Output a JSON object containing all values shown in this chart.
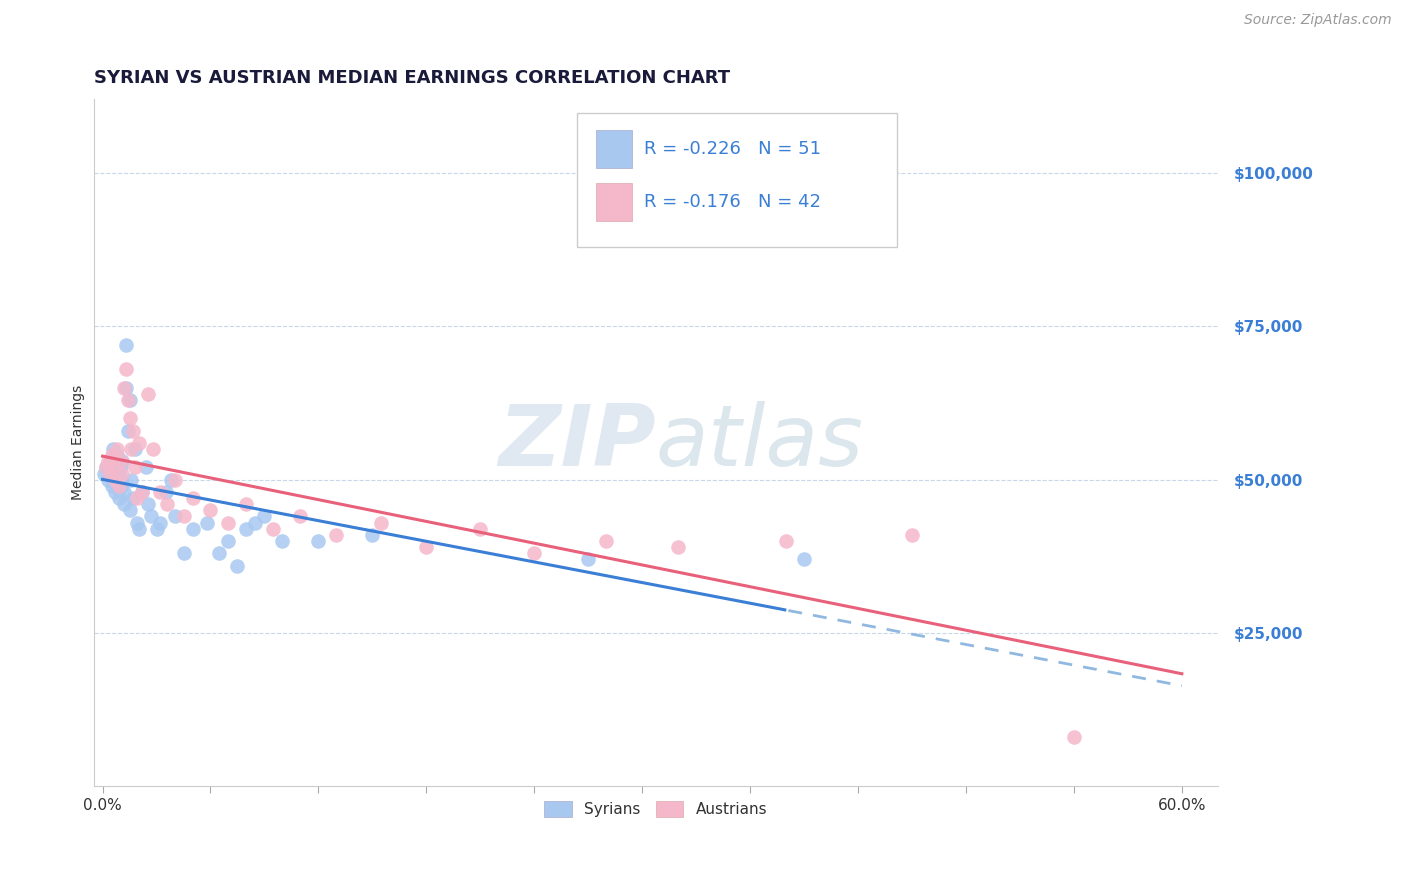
{
  "title": "SYRIAN VS AUSTRIAN MEDIAN EARNINGS CORRELATION CHART",
  "source": "Source: ZipAtlas.com",
  "ylabel": "Median Earnings",
  "xlim": [
    -0.005,
    0.62
  ],
  "ylim": [
    0,
    112000
  ],
  "yticks": [
    25000,
    50000,
    75000,
    100000
  ],
  "ytick_labels": [
    "$25,000",
    "$50,000",
    "$75,000",
    "$100,000"
  ],
  "xtick_labels_show": [
    "0.0%",
    "60.0%"
  ],
  "xtick_positions_show": [
    0.0,
    0.6
  ],
  "xtick_minor": [
    0.0,
    0.06,
    0.12,
    0.18,
    0.24,
    0.3,
    0.36,
    0.42,
    0.48,
    0.54,
    0.6
  ],
  "syrians_color": "#a8c8f0",
  "austrians_color": "#f5b8cb",
  "trendline_syrians_solid_color": "#3a7fd5",
  "trendline_syrians_dash_color": "#90b8e0",
  "trendline_austrians_color": "#e8607a",
  "background_color": "#ffffff",
  "watermark_zip": "ZIP",
  "watermark_atlas": "atlas",
  "legend_blue_color": "#3a7fd5",
  "legend_r1": "R = -0.226",
  "legend_n1": "N = 51",
  "legend_r2": "R = -0.176",
  "legend_n2": "N = 42",
  "syrians_x": [
    0.001,
    0.002,
    0.003,
    0.004,
    0.005,
    0.006,
    0.006,
    0.007,
    0.008,
    0.008,
    0.009,
    0.009,
    0.01,
    0.01,
    0.011,
    0.011,
    0.012,
    0.012,
    0.013,
    0.013,
    0.014,
    0.015,
    0.015,
    0.016,
    0.017,
    0.018,
    0.019,
    0.02,
    0.022,
    0.024,
    0.025,
    0.027,
    0.03,
    0.032,
    0.035,
    0.038,
    0.04,
    0.045,
    0.05,
    0.058,
    0.065,
    0.07,
    0.075,
    0.08,
    0.085,
    0.09,
    0.1,
    0.12,
    0.15,
    0.27,
    0.39
  ],
  "syrians_y": [
    51000,
    52000,
    50000,
    53000,
    49000,
    55000,
    52000,
    48000,
    50000,
    54000,
    47000,
    51000,
    49000,
    52000,
    50000,
    53000,
    46000,
    48000,
    65000,
    72000,
    58000,
    63000,
    45000,
    50000,
    47000,
    55000,
    43000,
    42000,
    48000,
    52000,
    46000,
    44000,
    42000,
    43000,
    48000,
    50000,
    44000,
    38000,
    42000,
    43000,
    38000,
    40000,
    36000,
    42000,
    43000,
    44000,
    40000,
    40000,
    41000,
    37000,
    37000
  ],
  "austrians_x": [
    0.002,
    0.003,
    0.004,
    0.005,
    0.006,
    0.007,
    0.008,
    0.009,
    0.01,
    0.011,
    0.012,
    0.013,
    0.014,
    0.015,
    0.016,
    0.017,
    0.018,
    0.019,
    0.02,
    0.022,
    0.025,
    0.028,
    0.032,
    0.036,
    0.04,
    0.045,
    0.05,
    0.06,
    0.07,
    0.08,
    0.095,
    0.11,
    0.13,
    0.155,
    0.18,
    0.21,
    0.24,
    0.28,
    0.32,
    0.38,
    0.45,
    0.54
  ],
  "austrians_y": [
    52000,
    53000,
    51000,
    54000,
    52000,
    50000,
    55000,
    49000,
    53000,
    51000,
    65000,
    68000,
    63000,
    60000,
    55000,
    58000,
    52000,
    47000,
    56000,
    48000,
    64000,
    55000,
    48000,
    46000,
    50000,
    44000,
    47000,
    45000,
    43000,
    46000,
    42000,
    44000,
    41000,
    43000,
    39000,
    42000,
    38000,
    40000,
    39000,
    40000,
    41000,
    8000
  ],
  "title_fontsize": 13,
  "axis_label_fontsize": 10,
  "tick_fontsize": 11,
  "legend_fontsize": 13,
  "source_fontsize": 10
}
